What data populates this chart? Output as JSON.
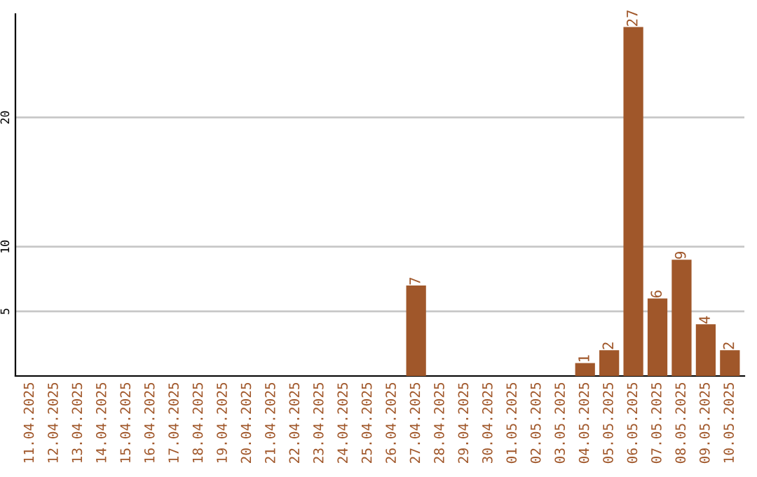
{
  "chart_data": {
    "type": "bar",
    "categories": [
      "11.04.2025",
      "12.04.2025",
      "13.04.2025",
      "14.04.2025",
      "15.04.2025",
      "16.04.2025",
      "17.04.2025",
      "18.04.2025",
      "19.04.2025",
      "20.04.2025",
      "21.04.2025",
      "22.04.2025",
      "23.04.2025",
      "24.04.2025",
      "25.04.2025",
      "26.04.2025",
      "27.04.2025",
      "28.04.2025",
      "29.04.2025",
      "30.04.2025",
      "01.05.2025",
      "02.05.2025",
      "03.05.2025",
      "04.05.2025",
      "05.05.2025",
      "06.05.2025",
      "07.05.2025",
      "08.05.2025",
      "09.05.2025",
      "10.05.2025"
    ],
    "values": [
      0,
      0,
      0,
      0,
      0,
      0,
      0,
      0,
      0,
      0,
      0,
      0,
      0,
      0,
      0,
      0,
      7,
      0,
      0,
      0,
      0,
      0,
      0,
      1,
      2,
      27,
      6,
      9,
      4,
      2
    ],
    "value_labels": [
      null,
      null,
      null,
      null,
      null,
      null,
      null,
      null,
      null,
      null,
      null,
      null,
      null,
      null,
      null,
      null,
      "7",
      null,
      null,
      null,
      null,
      null,
      null,
      "1",
      "2",
      "27",
      "6",
      "9",
      "4",
      "2"
    ],
    "color": "#a0572a",
    "ylim": [
      0,
      28
    ],
    "yticks": [
      5,
      10,
      20
    ],
    "grid": "y"
  }
}
